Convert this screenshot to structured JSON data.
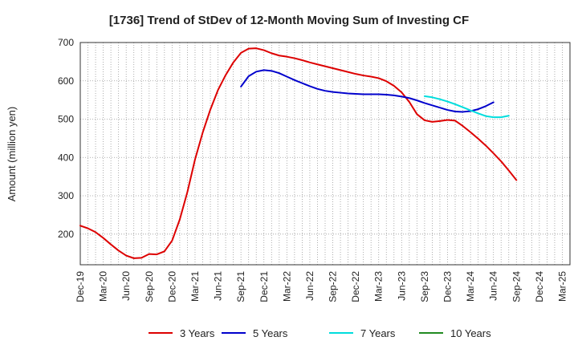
{
  "chart_data": {
    "type": "line",
    "title": "[1736]  Trend of StDev of 12-Month Moving Sum of Investing CF",
    "xlabel": "",
    "ylabel": "Amount (million yen)",
    "ylim": [
      120,
      700
    ],
    "yticks": [
      200,
      300,
      400,
      500,
      600,
      700
    ],
    "x_start": "Dec-19",
    "x_ticks": [
      "Dec-19",
      "Mar-20",
      "Jun-20",
      "Sep-20",
      "Dec-20",
      "Mar-21",
      "Jun-21",
      "Sep-21",
      "Dec-21",
      "Mar-22",
      "Jun-22",
      "Sep-22",
      "Dec-22",
      "Mar-23",
      "Jun-23",
      "Sep-23",
      "Dec-23",
      "Mar-24",
      "Jun-24",
      "Sep-24",
      "Dec-24",
      "Mar-25"
    ],
    "x_count": 64,
    "grid": true,
    "legend_position": "bottom",
    "series": [
      {
        "name": "3 Years",
        "color": "#dd0000",
        "start_index": 0,
        "values": [
          222,
          215,
          205,
          190,
          173,
          157,
          144,
          137,
          138,
          148,
          147,
          155,
          183,
          238,
          310,
          395,
          465,
          525,
          576,
          615,
          648,
          673,
          684,
          685,
          680,
          672,
          666,
          663,
          659,
          654,
          648,
          643,
          638,
          633,
          628,
          623,
          618,
          614,
          611,
          607,
          599,
          587,
          570,
          545,
          513,
          497,
          493,
          495,
          498,
          496,
          482,
          466,
          449,
          431,
          411,
          390,
          366,
          341
        ]
      },
      {
        "name": "5 Years",
        "color": "#0000cc",
        "start_index": 21,
        "values": [
          585,
          612,
          624,
          628,
          626,
          620,
          611,
          602,
          594,
          586,
          579,
          574,
          571,
          569,
          567,
          566,
          565,
          565,
          565,
          564,
          562,
          559,
          555,
          549,
          542,
          536,
          530,
          524,
          520,
          519,
          521,
          526,
          534,
          544
        ]
      },
      {
        "name": "7 Years",
        "color": "#00dddd",
        "start_index": 45,
        "values": [
          560,
          557,
          552,
          546,
          539,
          531,
          523,
          515,
          508,
          505,
          505,
          509
        ]
      },
      {
        "name": "10 Years",
        "color": "#228b22",
        "start_index": 0,
        "values": []
      }
    ]
  }
}
